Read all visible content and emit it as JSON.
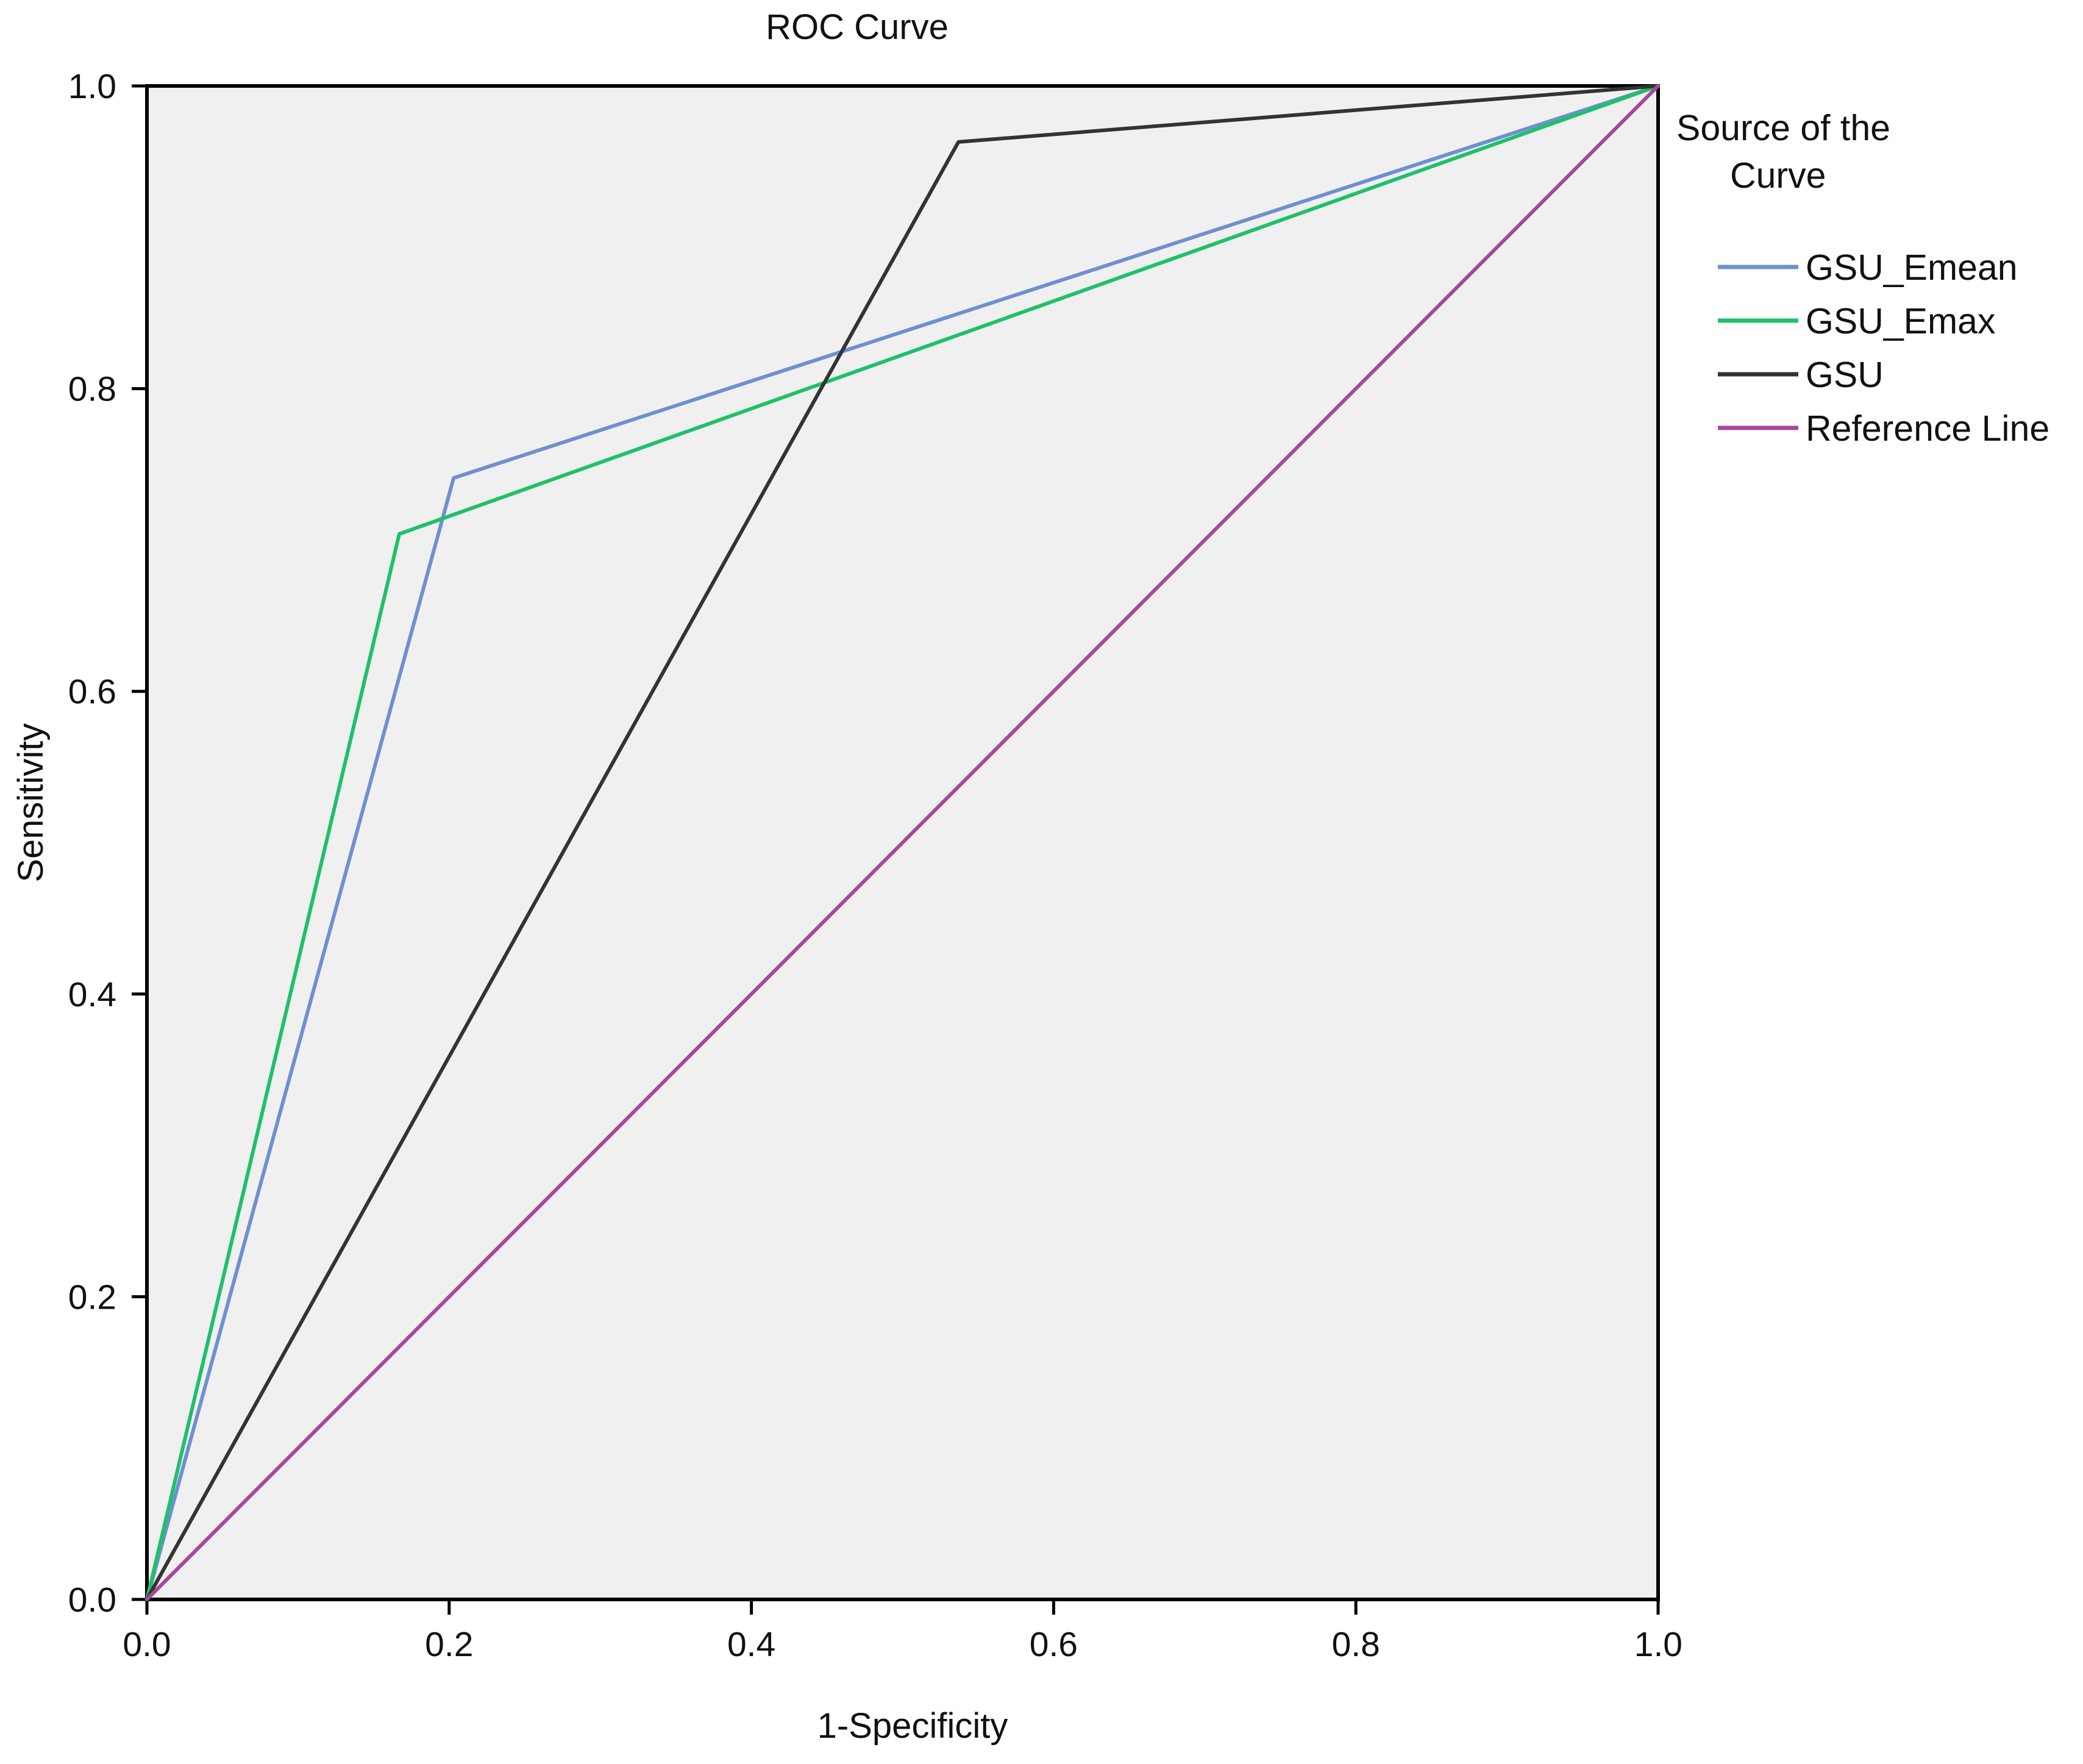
{
  "chart_data": {
    "type": "line",
    "title": "ROC Curve",
    "xlabel": "1-Specificity",
    "ylabel": "Sensitivity",
    "xlim": [
      0,
      1
    ],
    "ylim": [
      0,
      1
    ],
    "x_ticks": [
      "0.0",
      "0.2",
      "0.4",
      "0.6",
      "0.8",
      "1.0"
    ],
    "y_ticks": [
      "0.0",
      "0.2",
      "0.4",
      "0.6",
      "0.8",
      "1.0"
    ],
    "grid": false,
    "plot_background": "#f0f0f0",
    "legend": {
      "title": "Source of the Curve",
      "title_lines": [
        "Source of the",
        "Curve"
      ],
      "position": "right"
    },
    "series": [
      {
        "name": "GSU_Emean",
        "color": "#6f8fd0",
        "points": [
          [
            0.0,
            0.0
          ],
          [
            0.203,
            0.741
          ],
          [
            1.0,
            1.0
          ]
        ]
      },
      {
        "name": "GSU_Emax",
        "color": "#1fc06a",
        "points": [
          [
            0.0,
            0.0
          ],
          [
            0.167,
            0.704
          ],
          [
            1.0,
            1.0
          ]
        ]
      },
      {
        "name": "GSU",
        "color": "#333333",
        "points": [
          [
            0.0,
            0.0
          ],
          [
            0.537,
            0.963
          ],
          [
            1.0,
            1.0
          ]
        ]
      },
      {
        "name": "Reference Line",
        "color": "#a8479b",
        "points": [
          [
            0.0,
            0.0
          ],
          [
            1.0,
            1.0
          ]
        ]
      }
    ]
  }
}
